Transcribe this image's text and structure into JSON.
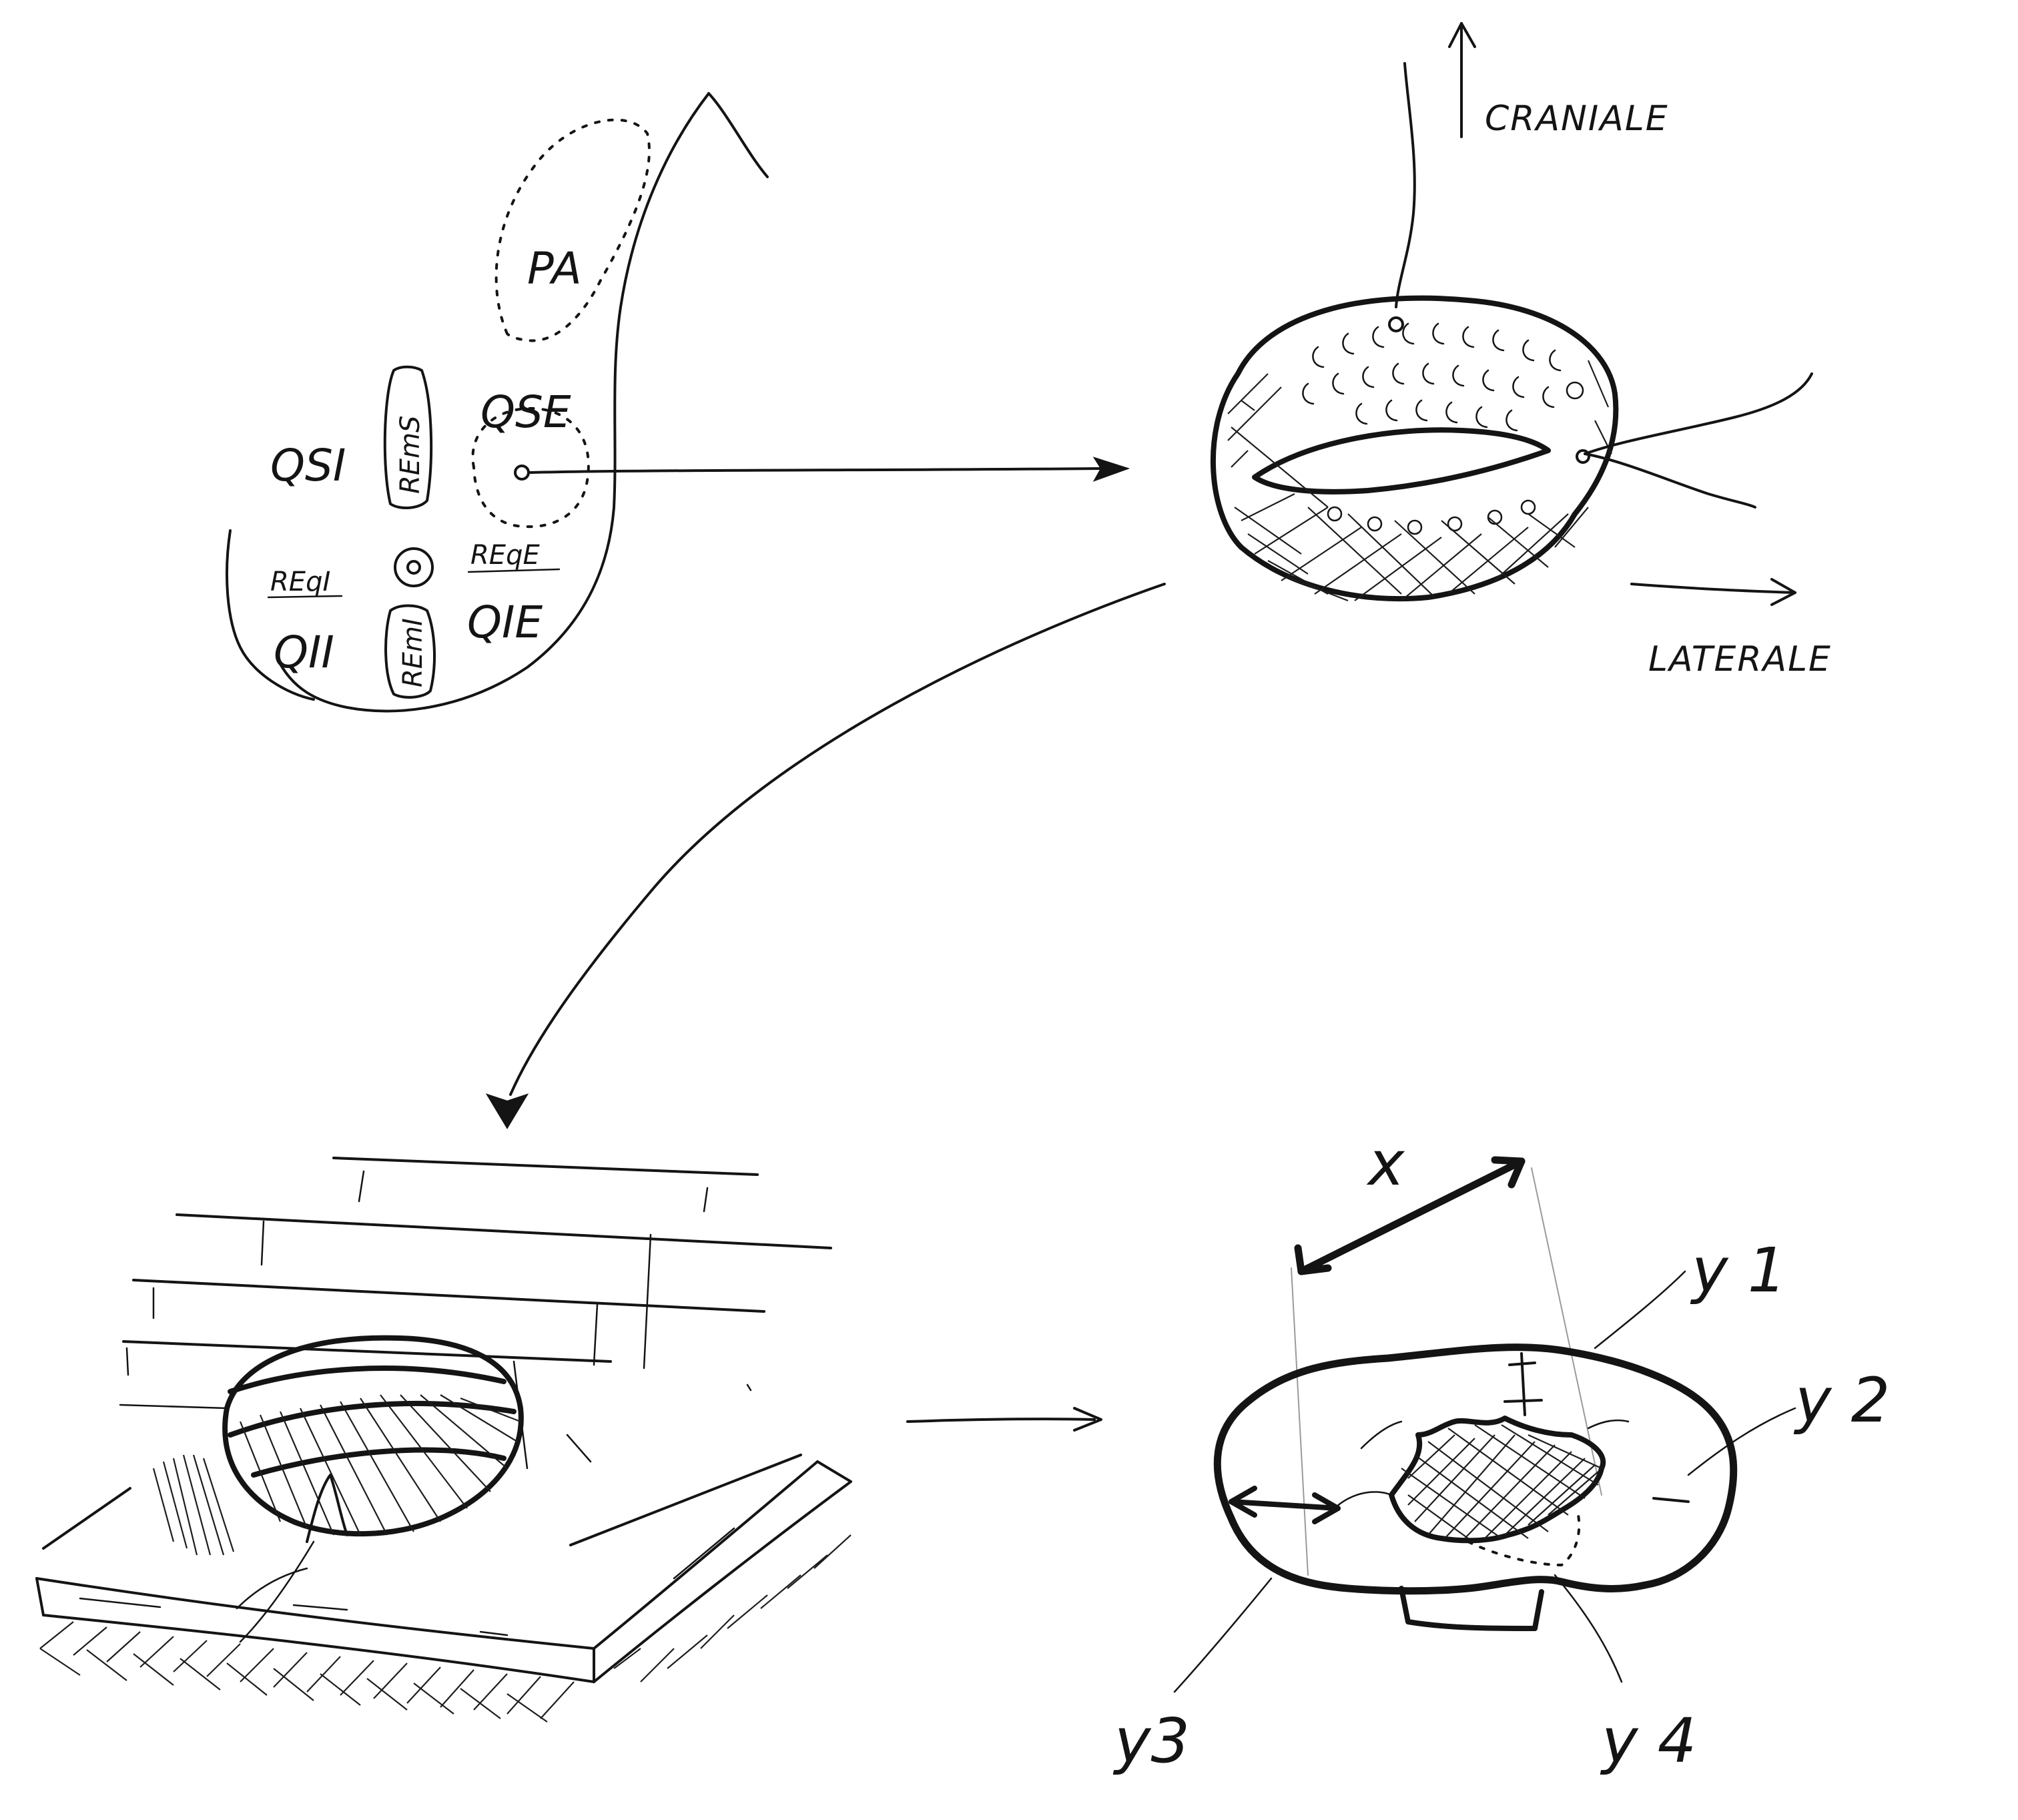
{
  "breast_map": {
    "pa": "PA",
    "qse": "QSE",
    "qsi": "QSI",
    "rems": "REmS",
    "regi": "REqI",
    "rege": "REqE",
    "qii": "QII",
    "remi": "REmI",
    "qie": "QIE"
  },
  "orientation": {
    "cranial": "CRANIALE",
    "lateral": "LATERALE"
  },
  "measures": {
    "x": "x",
    "y1": "y 1",
    "y2": "y 2",
    "y3": "y3",
    "y4": "y 4"
  }
}
